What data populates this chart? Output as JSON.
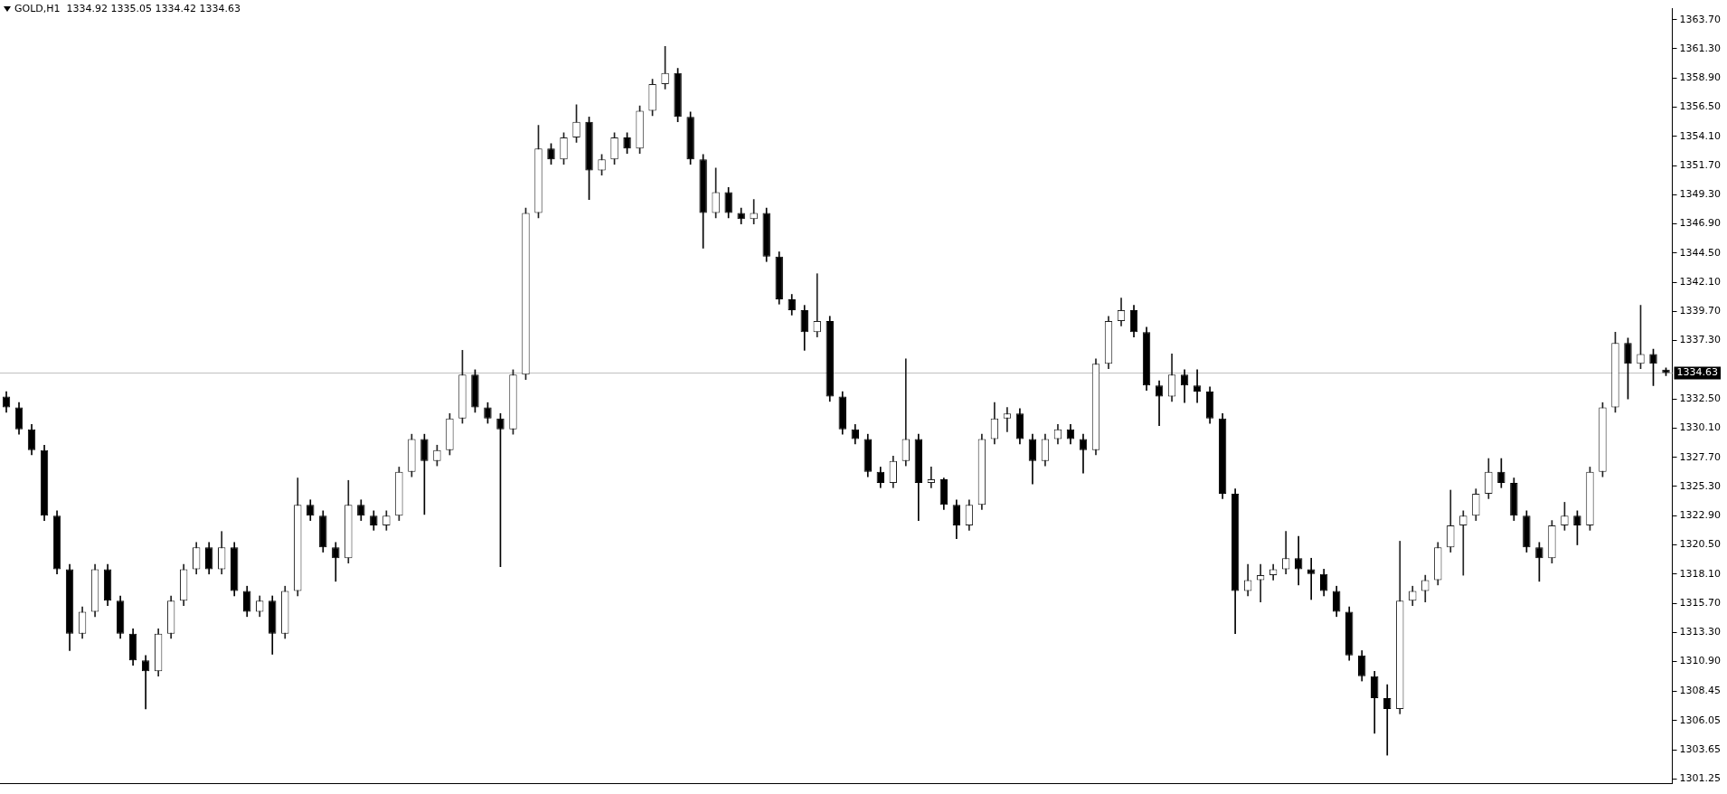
{
  "chart_data": {
    "type": "candlestick",
    "title": "GOLD,H1  1334.92 1335.05 1334.42 1334.63",
    "colors": [
      "#000000",
      "#000000",
      "#000000",
      "#000000",
      "#000000",
      "#000000",
      "#202020",
      "#202020",
      "#000000",
      "#000000",
      "#000000",
      "#000000",
      "#202020",
      "#202020",
      "#202020",
      "#202020",
      "#000000",
      "#202020",
      "#000000",
      "#000000",
      "#202020",
      "#000000",
      "#202020",
      "#202020",
      "#000000",
      "#000000",
      "#000000",
      "#202020",
      "#000000",
      "#000000",
      "#202020",
      "#202020",
      "#202020",
      "#000000",
      "#202020",
      "#202020",
      "#202020",
      "#000000",
      "#000000",
      "#000000",
      "#202020",
      "#202020",
      "#202020",
      "#000000",
      "#202020",
      "#202020",
      "#000000",
      "#202020",
      "#202020",
      "#000000",
      "#202020",
      "#202020",
      "#202020",
      "#000000",
      "#000000",
      "#000000",
      "#202020",
      "#000000",
      "#000000",
      "#202020",
      "#000000",
      "#000000",
      "#000000",
      "#000000",
      "#202020",
      "#000000",
      "#000000",
      "#000000",
      "#000000",
      "#000000",
      "#202020",
      "#202020",
      "#000000",
      "#202020",
      "#000000",
      "#000000",
      "#202020",
      "#202020",
      "#202020",
      "#202020",
      "#000000",
      "#000000",
      "#202020",
      "#202020",
      "#000000",
      "#000000",
      "#202020",
      "#202020",
      "#202020",
      "#000000",
      "#000000",
      "#000000",
      "#202020",
      "#000000",
      "#000000",
      "#000000",
      "#000000",
      "#000000",
      "#202020",
      "#202020",
      "#202020",
      "#202020",
      "#000000",
      "#000000",
      "#000000",
      "#000000",
      "#000000",
      "#000000",
      "#000000",
      "#000000",
      "#202020",
      "#202020",
      "#202020",
      "#202020",
      "#202020",
      "#202020",
      "#202020",
      "#202020",
      "#000000",
      "#000000",
      "#000000",
      "#000000",
      "#202020",
      "#202020",
      "#000000",
      "#202020",
      "#202020",
      "#202020",
      "#000000",
      "#202020",
      "#000000",
      "#000000"
    ],
    "categories": [
      null,
      null,
      null,
      null,
      null,
      null,
      null,
      null,
      null,
      null,
      null,
      null,
      null,
      null,
      null,
      null,
      null,
      null,
      null,
      null,
      null,
      null,
      null,
      null,
      null,
      null,
      null,
      null,
      null,
      null,
      null,
      null,
      null,
      null,
      null,
      null,
      null,
      null,
      null,
      null,
      null,
      null,
      null,
      null,
      null,
      null,
      null,
      null,
      null,
      null,
      null,
      null,
      null,
      null,
      null,
      null,
      null,
      null,
      null,
      null,
      null,
      null,
      null,
      null,
      null,
      null,
      null,
      null,
      null,
      null,
      null,
      null,
      null,
      null,
      null,
      null,
      null,
      null,
      null,
      null,
      null,
      null,
      null,
      null,
      null,
      null,
      null,
      null,
      null,
      null,
      null,
      null,
      null,
      null,
      null,
      null,
      null,
      null,
      null,
      null,
      null,
      null,
      null,
      null,
      null,
      null,
      null,
      null,
      null,
      null,
      null,
      null,
      null,
      null,
      null,
      null,
      null,
      null,
      null,
      null,
      null,
      null,
      null,
      null,
      null,
      null,
      null,
      null,
      null,
      null,
      null,
      null
    ],
    "ohlc": [
      [
        1332.7,
        1333.1,
        1331.4,
        1331.8
      ],
      [
        1331.8,
        1332.2,
        1329.6,
        1330.0
      ],
      [
        1330.0,
        1330.4,
        1327.9,
        1328.3
      ],
      [
        1328.3,
        1328.7,
        1322.5,
        1322.9
      ],
      [
        1322.9,
        1323.3,
        1318.1,
        1318.5
      ],
      [
        1318.5,
        1318.9,
        1311.8,
        1313.2
      ],
      [
        1313.2,
        1315.4,
        1312.8,
        1315.0
      ],
      [
        1315.0,
        1318.9,
        1314.6,
        1318.5
      ],
      [
        1318.5,
        1318.9,
        1315.5,
        1315.9
      ],
      [
        1315.9,
        1316.3,
        1312.8,
        1313.2
      ],
      [
        1313.2,
        1313.6,
        1310.6,
        1311.0
      ],
      [
        1311.0,
        1311.4,
        1307.0,
        1310.1
      ],
      [
        1310.1,
        1313.6,
        1309.7,
        1313.2
      ],
      [
        1313.2,
        1316.3,
        1312.8,
        1315.9
      ],
      [
        1315.9,
        1318.9,
        1315.5,
        1318.5
      ],
      [
        1318.5,
        1320.7,
        1318.1,
        1320.3
      ],
      [
        1320.3,
        1320.7,
        1318.1,
        1318.5
      ],
      [
        1318.5,
        1321.6,
        1318.1,
        1320.3
      ],
      [
        1320.3,
        1320.7,
        1316.3,
        1316.7
      ],
      [
        1316.7,
        1317.1,
        1314.6,
        1315.0
      ],
      [
        1315.0,
        1316.3,
        1314.6,
        1315.9
      ],
      [
        1315.9,
        1316.3,
        1311.5,
        1313.2
      ],
      [
        1313.2,
        1317.1,
        1312.8,
        1316.7
      ],
      [
        1316.7,
        1326.0,
        1316.3,
        1323.8
      ],
      [
        1323.8,
        1324.2,
        1322.5,
        1322.9
      ],
      [
        1322.9,
        1323.3,
        1319.9,
        1320.3
      ],
      [
        1320.3,
        1320.7,
        1317.5,
        1319.4
      ],
      [
        1319.4,
        1325.8,
        1319.0,
        1323.8
      ],
      [
        1323.8,
        1324.2,
        1322.5,
        1322.9
      ],
      [
        1322.9,
        1323.3,
        1321.7,
        1322.1
      ],
      [
        1322.1,
        1323.3,
        1321.7,
        1322.9
      ],
      [
        1322.9,
        1326.9,
        1322.5,
        1326.5
      ],
      [
        1326.5,
        1329.6,
        1326.1,
        1329.2
      ],
      [
        1329.2,
        1329.6,
        1323.0,
        1327.4
      ],
      [
        1327.4,
        1328.7,
        1327.0,
        1328.3
      ],
      [
        1328.3,
        1331.3,
        1327.9,
        1330.9
      ],
      [
        1330.9,
        1336.5,
        1330.5,
        1334.5
      ],
      [
        1334.5,
        1334.9,
        1331.4,
        1331.8
      ],
      [
        1331.8,
        1332.2,
        1330.5,
        1330.9
      ],
      [
        1330.9,
        1331.3,
        1318.7,
        1330.0
      ],
      [
        1330.0,
        1334.9,
        1329.6,
        1334.5
      ],
      [
        1334.5,
        1348.2,
        1334.1,
        1347.8
      ],
      [
        1347.8,
        1355.0,
        1347.4,
        1353.1
      ],
      [
        1353.1,
        1353.5,
        1351.8,
        1352.2
      ],
      [
        1352.2,
        1354.4,
        1351.8,
        1354.0
      ],
      [
        1354.0,
        1356.7,
        1353.6,
        1355.3
      ],
      [
        1355.3,
        1355.7,
        1348.9,
        1351.3
      ],
      [
        1351.3,
        1352.6,
        1350.9,
        1352.2
      ],
      [
        1352.2,
        1354.4,
        1351.8,
        1354.0
      ],
      [
        1354.0,
        1354.4,
        1352.7,
        1353.1
      ],
      [
        1353.1,
        1356.6,
        1352.7,
        1356.2
      ],
      [
        1356.2,
        1358.8,
        1355.8,
        1358.4
      ],
      [
        1358.4,
        1361.5,
        1358.0,
        1359.3
      ],
      [
        1359.3,
        1359.7,
        1355.3,
        1355.7
      ],
      [
        1355.7,
        1356.1,
        1351.8,
        1352.2
      ],
      [
        1352.2,
        1352.6,
        1344.9,
        1347.8
      ],
      [
        1347.8,
        1351.5,
        1347.4,
        1349.5
      ],
      [
        1349.5,
        1349.9,
        1347.4,
        1347.8
      ],
      [
        1347.8,
        1348.2,
        1346.9,
        1347.3
      ],
      [
        1347.3,
        1348.9,
        1346.9,
        1347.8
      ],
      [
        1347.8,
        1348.2,
        1343.8,
        1344.2
      ],
      [
        1344.2,
        1344.6,
        1340.3,
        1340.7
      ],
      [
        1340.7,
        1341.1,
        1339.4,
        1339.8
      ],
      [
        1339.8,
        1340.2,
        1336.5,
        1338.0
      ],
      [
        1338.0,
        1342.8,
        1337.6,
        1338.9
      ],
      [
        1338.9,
        1339.3,
        1332.3,
        1332.7
      ],
      [
        1332.7,
        1333.1,
        1329.6,
        1330.0
      ],
      [
        1330.0,
        1330.4,
        1328.8,
        1329.2
      ],
      [
        1329.2,
        1329.6,
        1326.1,
        1326.5
      ],
      [
        1326.5,
        1326.9,
        1325.2,
        1325.6
      ],
      [
        1325.6,
        1327.8,
        1325.2,
        1327.4
      ],
      [
        1327.4,
        1335.8,
        1327.0,
        1329.2
      ],
      [
        1329.2,
        1329.6,
        1322.5,
        1325.6
      ],
      [
        1325.6,
        1326.9,
        1325.2,
        1325.9
      ],
      [
        1325.9,
        1326.0,
        1323.4,
        1323.8
      ],
      [
        1323.8,
        1324.2,
        1321.0,
        1322.1
      ],
      [
        1322.1,
        1324.2,
        1321.7,
        1323.8
      ],
      [
        1323.8,
        1329.6,
        1323.4,
        1329.2
      ],
      [
        1329.2,
        1332.2,
        1328.8,
        1330.9
      ],
      [
        1330.9,
        1331.8,
        1329.8,
        1331.3
      ],
      [
        1331.3,
        1331.7,
        1328.8,
        1329.2
      ],
      [
        1329.2,
        1329.6,
        1325.5,
        1327.4
      ],
      [
        1327.4,
        1329.6,
        1327.0,
        1329.2
      ],
      [
        1329.2,
        1330.4,
        1328.8,
        1330.0
      ],
      [
        1330.0,
        1330.4,
        1328.8,
        1329.2
      ],
      [
        1329.2,
        1329.6,
        1326.4,
        1328.3
      ],
      [
        1328.3,
        1335.8,
        1327.9,
        1335.4
      ],
      [
        1335.4,
        1339.3,
        1335.0,
        1338.9
      ],
      [
        1338.9,
        1340.8,
        1338.5,
        1339.8
      ],
      [
        1339.8,
        1340.2,
        1337.6,
        1338.0
      ],
      [
        1338.0,
        1338.4,
        1333.2,
        1333.6
      ],
      [
        1333.6,
        1334.0,
        1330.3,
        1332.7
      ],
      [
        1332.7,
        1336.2,
        1332.3,
        1334.5
      ],
      [
        1334.5,
        1334.9,
        1332.2,
        1333.6
      ],
      [
        1333.6,
        1334.9,
        1332.2,
        1333.1
      ],
      [
        1333.1,
        1333.5,
        1330.5,
        1330.9
      ],
      [
        1330.9,
        1331.3,
        1324.3,
        1324.7
      ],
      [
        1324.7,
        1325.1,
        1313.2,
        1316.7
      ],
      [
        1316.7,
        1318.9,
        1316.3,
        1317.6
      ],
      [
        1317.6,
        1318.9,
        1315.8,
        1318.0
      ],
      [
        1318.0,
        1318.9,
        1317.6,
        1318.5
      ],
      [
        1318.5,
        1321.6,
        1318.1,
        1319.4
      ],
      [
        1319.4,
        1321.2,
        1317.2,
        1318.5
      ],
      [
        1318.5,
        1319.4,
        1316.0,
        1318.1
      ],
      [
        1318.1,
        1318.5,
        1316.3,
        1316.7
      ],
      [
        1316.7,
        1317.1,
        1314.6,
        1315.0
      ],
      [
        1315.0,
        1315.4,
        1311.0,
        1311.4
      ],
      [
        1311.4,
        1311.8,
        1309.3,
        1309.7
      ],
      [
        1309.7,
        1310.1,
        1305.0,
        1307.9
      ],
      [
        1307.9,
        1309.0,
        1303.2,
        1307.0
      ],
      [
        1307.0,
        1320.8,
        1306.6,
        1315.9
      ],
      [
        1315.9,
        1317.1,
        1315.5,
        1316.7
      ],
      [
        1316.7,
        1318.0,
        1315.8,
        1317.6
      ],
      [
        1317.6,
        1320.7,
        1317.2,
        1320.3
      ],
      [
        1320.3,
        1325.0,
        1319.9,
        1322.1
      ],
      [
        1322.1,
        1323.3,
        1318.0,
        1322.9
      ],
      [
        1322.9,
        1325.1,
        1322.5,
        1324.7
      ],
      [
        1324.7,
        1327.6,
        1324.3,
        1326.5
      ],
      [
        1326.5,
        1327.6,
        1325.2,
        1325.6
      ],
      [
        1325.6,
        1326.0,
        1322.5,
        1322.9
      ],
      [
        1322.9,
        1323.3,
        1319.9,
        1320.3
      ],
      [
        1320.3,
        1320.7,
        1317.5,
        1319.4
      ],
      [
        1319.4,
        1322.5,
        1319.0,
        1322.1
      ],
      [
        1322.1,
        1324.0,
        1321.7,
        1322.9
      ],
      [
        1322.9,
        1323.3,
        1320.5,
        1322.1
      ],
      [
        1322.1,
        1326.9,
        1321.7,
        1326.5
      ],
      [
        1326.5,
        1332.2,
        1326.1,
        1331.8
      ],
      [
        1331.8,
        1338.0,
        1331.4,
        1337.1
      ],
      [
        1337.1,
        1337.5,
        1332.5,
        1335.4
      ],
      [
        1335.4,
        1340.2,
        1335.0,
        1336.2
      ],
      [
        1336.2,
        1336.6,
        1333.6,
        1335.4
      ],
      [
        1334.92,
        1335.05,
        1334.42,
        1334.63
      ]
    ],
    "ylim": [
      1300.9,
      1364.6
    ],
    "yticks": [
      {
        "value": 1301.25,
        "label": "1301.25"
      },
      {
        "value": 1303.65,
        "label": "1303.65"
      },
      {
        "value": 1306.05,
        "label": "1306.05"
      },
      {
        "value": 1308.45,
        "label": "1308.45"
      },
      {
        "value": 1310.9,
        "label": "1310.90"
      },
      {
        "value": 1313.3,
        "label": "1313.30"
      },
      {
        "value": 1315.7,
        "label": "1315.70"
      },
      {
        "value": 1318.1,
        "label": "1318.10"
      },
      {
        "value": 1320.5,
        "label": "1320.50"
      },
      {
        "value": 1322.9,
        "label": "1322.90"
      },
      {
        "value": 1325.3,
        "label": "1325.30"
      },
      {
        "value": 1327.7,
        "label": "1327.70"
      },
      {
        "value": 1330.1,
        "label": "1330.10"
      },
      {
        "value": 1332.5,
        "label": "1332.50"
      },
      {
        "value": 1337.3,
        "label": "1337.30"
      },
      {
        "value": 1339.7,
        "label": "1339.70"
      },
      {
        "value": 1342.1,
        "label": "1342.10"
      },
      {
        "value": 1344.5,
        "label": "1344.50"
      },
      {
        "value": 1346.9,
        "label": "1346.90"
      },
      {
        "value": 1349.3,
        "label": "1349.30"
      },
      {
        "value": 1351.7,
        "label": "1351.70"
      },
      {
        "value": 1354.1,
        "label": "1354.10"
      },
      {
        "value": 1356.5,
        "label": "1356.50"
      },
      {
        "value": 1358.9,
        "label": "1358.90"
      },
      {
        "value": 1361.3,
        "label": "1361.30"
      },
      {
        "value": 1363.7,
        "label": "1363.70"
      }
    ],
    "ref_lines": [
      {
        "axis": "y",
        "value": 1334.63,
        "label": "1334.63",
        "color": "#c0c0c0"
      }
    ],
    "tick_labels": "y",
    "grid": false,
    "legend": false
  }
}
